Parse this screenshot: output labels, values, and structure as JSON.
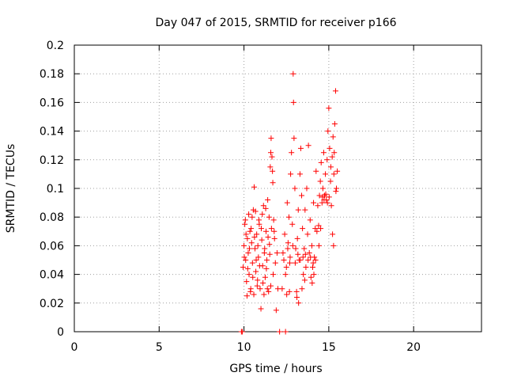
{
  "chart_data": {
    "type": "scatter",
    "title": "Day 047 of 2015, SRMTID for receiver p166",
    "xlabel": "GPS time / hours",
    "ylabel": "SRMTID / TECUs",
    "xlim": [
      0,
      24
    ],
    "ylim": [
      0,
      0.2
    ],
    "xticks": [
      0,
      5,
      10,
      15,
      20
    ],
    "xtick_labels": [
      "0",
      "5",
      "10",
      "15",
      "20"
    ],
    "yticks": [
      0,
      0.02,
      0.04,
      0.06,
      0.08,
      0.1,
      0.12,
      0.14,
      0.16,
      0.18,
      0.2
    ],
    "ytick_labels": [
      "0",
      "0.02",
      "0.04",
      "0.06",
      "0.08",
      "0.1",
      "0.12",
      "0.14",
      "0.16",
      "0.18",
      "0.2"
    ],
    "grid": true,
    "marker": "plus",
    "color": "#ff0000",
    "series": [
      {
        "name": "SRMTID",
        "points": [
          [
            9.85,
            0
          ],
          [
            9.9,
            0
          ],
          [
            12.1,
            0
          ],
          [
            12.45,
            0
          ],
          [
            9.95,
            0.045
          ],
          [
            10.0,
            0.06
          ],
          [
            10.05,
            0.075
          ],
          [
            10.1,
            0.05
          ],
          [
            10.15,
            0.035
          ],
          [
            10.2,
            0.065
          ],
          [
            10.25,
            0.055
          ],
          [
            10.3,
            0.04
          ],
          [
            10.35,
            0.07
          ],
          [
            10.4,
            0.03
          ],
          [
            10.45,
            0.062
          ],
          [
            10.5,
            0.048
          ],
          [
            10.55,
            0.085
          ],
          [
            10.6,
            0.101
          ],
          [
            10.65,
            0.058
          ],
          [
            10.7,
            0.042
          ],
          [
            10.75,
            0.068
          ],
          [
            10.8,
            0.036
          ],
          [
            10.85,
            0.052
          ],
          [
            10.9,
            0.075
          ],
          [
            10.95,
            0.03
          ],
          [
            11.0,
            0.016
          ],
          [
            11.05,
            0.064
          ],
          [
            11.1,
            0.046
          ],
          [
            11.15,
            0.088
          ],
          [
            11.2,
            0.055
          ],
          [
            11.25,
            0.038
          ],
          [
            11.3,
            0.07
          ],
          [
            11.35,
            0.05
          ],
          [
            11.4,
            0.092
          ],
          [
            11.45,
            0.028
          ],
          [
            11.5,
            0.061
          ],
          [
            11.55,
            0.115
          ],
          [
            11.6,
            0.135
          ],
          [
            11.65,
            0.122
          ],
          [
            11.7,
            0.104
          ],
          [
            11.75,
            0.078
          ],
          [
            11.8,
            0.065
          ],
          [
            11.85,
            0.048
          ],
          [
            11.9,
            0.015
          ],
          [
            11.95,
            0.055
          ],
          [
            12.0,
            0.03
          ],
          [
            10.02,
            0.052
          ],
          [
            10.12,
            0.068
          ],
          [
            10.22,
            0.044
          ],
          [
            10.32,
            0.058
          ],
          [
            10.42,
            0.072
          ],
          [
            10.52,
            0.038
          ],
          [
            10.62,
            0.066
          ],
          [
            10.72,
            0.05
          ],
          [
            10.82,
            0.06
          ],
          [
            10.92,
            0.046
          ],
          [
            11.02,
            0.072
          ],
          [
            11.12,
            0.034
          ],
          [
            11.22,
            0.058
          ],
          [
            11.32,
            0.044
          ],
          [
            11.42,
            0.066
          ],
          [
            11.52,
            0.054
          ],
          [
            11.62,
            0.072
          ],
          [
            11.72,
            0.04
          ],
          [
            12.3,
            0.055
          ],
          [
            12.4,
            0.068
          ],
          [
            12.5,
            0.045
          ],
          [
            12.55,
            0.09
          ],
          [
            12.6,
            0.062
          ],
          [
            12.65,
            0.08
          ],
          [
            12.7,
            0.048
          ],
          [
            12.75,
            0.11
          ],
          [
            12.8,
            0.125
          ],
          [
            12.85,
            0.075
          ],
          [
            12.9,
            0.18
          ],
          [
            12.92,
            0.16
          ],
          [
            12.95,
            0.135
          ],
          [
            13.0,
            0.1
          ],
          [
            13.05,
            0.058
          ],
          [
            13.1,
            0.028
          ],
          [
            13.15,
            0.065
          ],
          [
            13.2,
            0.085
          ],
          [
            13.25,
            0.05
          ],
          [
            13.3,
            0.11
          ],
          [
            13.35,
            0.128
          ],
          [
            13.4,
            0.095
          ],
          [
            13.45,
            0.072
          ],
          [
            13.5,
            0.04
          ],
          [
            13.55,
            0.058
          ],
          [
            13.6,
            0.085
          ],
          [
            13.65,
            0.045
          ],
          [
            13.7,
            0.1
          ],
          [
            13.75,
            0.068
          ],
          [
            13.8,
            0.13
          ],
          [
            13.85,
            0.055
          ],
          [
            13.9,
            0.078
          ],
          [
            13.95,
            0.038
          ],
          [
            14.0,
            0.06
          ],
          [
            14.05,
            0.045
          ],
          [
            14.1,
            0.09
          ],
          [
            14.15,
            0.052
          ],
          [
            14.2,
            0.072
          ],
          [
            14.25,
            0.112
          ],
          [
            14.3,
            0.07
          ],
          [
            14.35,
            0.088
          ],
          [
            14.4,
            0.074
          ],
          [
            14.45,
            0.095
          ],
          [
            14.5,
            0.105
          ],
          [
            14.55,
            0.118
          ],
          [
            14.6,
            0.09
          ],
          [
            14.65,
            0.1
          ],
          [
            14.7,
            0.125
          ],
          [
            14.75,
            0.095
          ],
          [
            14.8,
            0.11
          ],
          [
            14.85,
            0.092
          ],
          [
            14.9,
            0.12
          ],
          [
            14.95,
            0.14
          ],
          [
            15.0,
            0.156
          ],
          [
            15.05,
            0.128
          ],
          [
            15.1,
            0.105
          ],
          [
            15.15,
            0.088
          ],
          [
            15.2,
            0.122
          ],
          [
            15.25,
            0.136
          ],
          [
            15.3,
            0.11
          ],
          [
            15.35,
            0.145
          ],
          [
            15.4,
            0.168
          ],
          [
            15.45,
            0.1
          ],
          [
            15.5,
            0.112
          ],
          [
            15.22,
            0.068
          ],
          [
            15.28,
            0.06
          ],
          [
            12.35,
            0.05
          ],
          [
            12.45,
            0.04
          ],
          [
            12.58,
            0.058
          ],
          [
            12.72,
            0.052
          ],
          [
            12.88,
            0.06
          ],
          [
            13.02,
            0.048
          ],
          [
            13.18,
            0.054
          ],
          [
            13.32,
            0.05
          ],
          [
            13.48,
            0.052
          ],
          [
            13.62,
            0.054
          ],
          [
            13.78,
            0.05
          ],
          [
            13.92,
            0.052
          ],
          [
            14.08,
            0.048
          ],
          [
            14.22,
            0.05
          ],
          [
            13.12,
            0.024
          ],
          [
            13.22,
            0.02
          ],
          [
            13.42,
            0.03
          ],
          [
            13.58,
            0.036
          ],
          [
            14.12,
            0.04
          ],
          [
            14.02,
            0.034
          ],
          [
            14.62,
            0.094
          ],
          [
            14.72,
            0.092
          ],
          [
            14.82,
            0.096
          ],
          [
            14.92,
            0.09
          ],
          [
            15.02,
            0.094
          ],
          [
            15.12,
            0.115
          ],
          [
            15.32,
            0.125
          ],
          [
            15.42,
            0.098
          ],
          [
            14.52,
            0.072
          ],
          [
            14.42,
            0.06
          ],
          [
            12.25,
            0.03
          ],
          [
            12.52,
            0.026
          ],
          [
            12.68,
            0.028
          ],
          [
            10.08,
            0.078
          ],
          [
            10.28,
            0.082
          ],
          [
            10.48,
            0.08
          ],
          [
            10.68,
            0.084
          ],
          [
            10.88,
            0.078
          ],
          [
            11.08,
            0.082
          ],
          [
            11.28,
            0.086
          ],
          [
            11.48,
            0.08
          ],
          [
            11.58,
            0.125
          ],
          [
            11.68,
            0.112
          ],
          [
            11.78,
            0.07
          ],
          [
            10.18,
            0.025
          ],
          [
            10.38,
            0.028
          ],
          [
            10.58,
            0.026
          ],
          [
            10.78,
            0.032
          ],
          [
            11.18,
            0.026
          ],
          [
            11.38,
            0.03
          ],
          [
            11.58,
            0.032
          ]
        ]
      }
    ]
  }
}
